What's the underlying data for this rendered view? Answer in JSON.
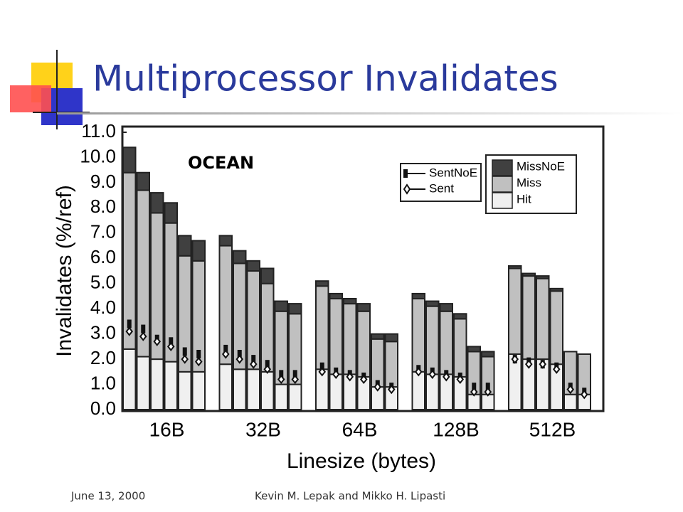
{
  "header": {
    "title": "Multiprocessor Invalidates"
  },
  "footer": {
    "date": "June 13, 2000",
    "authors": "Kevin M. Lepak and Mikko H. Lipasti"
  },
  "chart_data": {
    "type": "bar",
    "stacked": true,
    "annotation": "OCEAN",
    "x_label": "Linesize (bytes)",
    "y_label": "Invalidates (%/ref)",
    "categories": [
      "16B",
      "32B",
      "64B",
      "128B",
      "512B"
    ],
    "ylim": [
      0,
      11
    ],
    "yticks": [
      {
        "value": 0,
        "label": "0.0"
      },
      {
        "value": 1,
        "label": "1.0"
      },
      {
        "value": 2,
        "label": "2.0"
      },
      {
        "value": 3,
        "label": "3.0"
      },
      {
        "value": 4,
        "label": "4.0"
      },
      {
        "value": 5,
        "label": "5.0"
      },
      {
        "value": 6,
        "label": "6.0"
      },
      {
        "value": 7,
        "label": "7.0"
      },
      {
        "value": 8,
        "label": "8.0"
      },
      {
        "value": 9,
        "label": "9.0"
      },
      {
        "value": 10,
        "label": "10.0"
      },
      {
        "value": 11,
        "label": "11.0"
      }
    ],
    "series": [
      {
        "name": "Hit",
        "color": "#f0f0f0",
        "values": [
          [
            2.4,
            2.1,
            2.0,
            1.9,
            1.5,
            1.5
          ],
          [
            1.8,
            1.6,
            1.6,
            1.5,
            1.0,
            1.0
          ],
          [
            1.6,
            1.4,
            1.4,
            1.3,
            0.9,
            0.9
          ],
          [
            1.5,
            1.4,
            1.4,
            1.3,
            0.6,
            0.6
          ],
          [
            2.2,
            2.0,
            2.0,
            1.8,
            0.6,
            0.6
          ]
        ]
      },
      {
        "name": "Miss",
        "color": "#c0c0c0",
        "values": [
          [
            7.0,
            6.6,
            5.8,
            5.5,
            4.6,
            4.4
          ],
          [
            4.7,
            4.2,
            3.9,
            3.5,
            2.9,
            2.8
          ],
          [
            3.3,
            3.0,
            2.8,
            2.6,
            1.9,
            1.8
          ],
          [
            2.9,
            2.7,
            2.5,
            2.3,
            1.7,
            1.5
          ],
          [
            3.4,
            3.3,
            3.2,
            2.9,
            1.7,
            1.6
          ]
        ]
      },
      {
        "name": "MissNoE",
        "color": "#404040",
        "values": [
          [
            1.0,
            0.7,
            0.8,
            0.8,
            0.8,
            0.8
          ],
          [
            0.4,
            0.5,
            0.4,
            0.6,
            0.4,
            0.4
          ],
          [
            0.2,
            0.2,
            0.2,
            0.3,
            0.2,
            0.3
          ],
          [
            0.2,
            0.2,
            0.3,
            0.2,
            0.2,
            0.2
          ],
          [
            0.1,
            0.1,
            0.1,
            0.1,
            0.0,
            0.0
          ]
        ]
      }
    ],
    "line_series": [
      {
        "name": "SentNoE",
        "marker": "square",
        "color": "#111111",
        "values": [
          [
            3.4,
            3.2,
            2.8,
            2.7,
            2.3,
            2.2
          ],
          [
            2.4,
            2.2,
            2.0,
            1.8,
            1.4,
            1.4
          ],
          [
            1.7,
            1.5,
            1.4,
            1.3,
            1.0,
            0.9
          ],
          [
            1.6,
            1.5,
            1.4,
            1.3,
            0.9,
            0.9
          ],
          [
            2.0,
            1.9,
            1.8,
            1.7,
            0.9,
            0.7
          ]
        ]
      },
      {
        "name": "Sent",
        "marker": "diamond",
        "color": "#111111",
        "values": [
          [
            3.1,
            2.9,
            2.7,
            2.5,
            2.0,
            1.9
          ],
          [
            2.2,
            2.0,
            1.8,
            1.6,
            1.2,
            1.2
          ],
          [
            1.5,
            1.4,
            1.3,
            1.2,
            0.9,
            0.8
          ],
          [
            1.5,
            1.4,
            1.3,
            1.2,
            0.7,
            0.7
          ],
          [
            2.0,
            1.8,
            1.8,
            1.6,
            0.8,
            0.6
          ]
        ]
      }
    ]
  }
}
